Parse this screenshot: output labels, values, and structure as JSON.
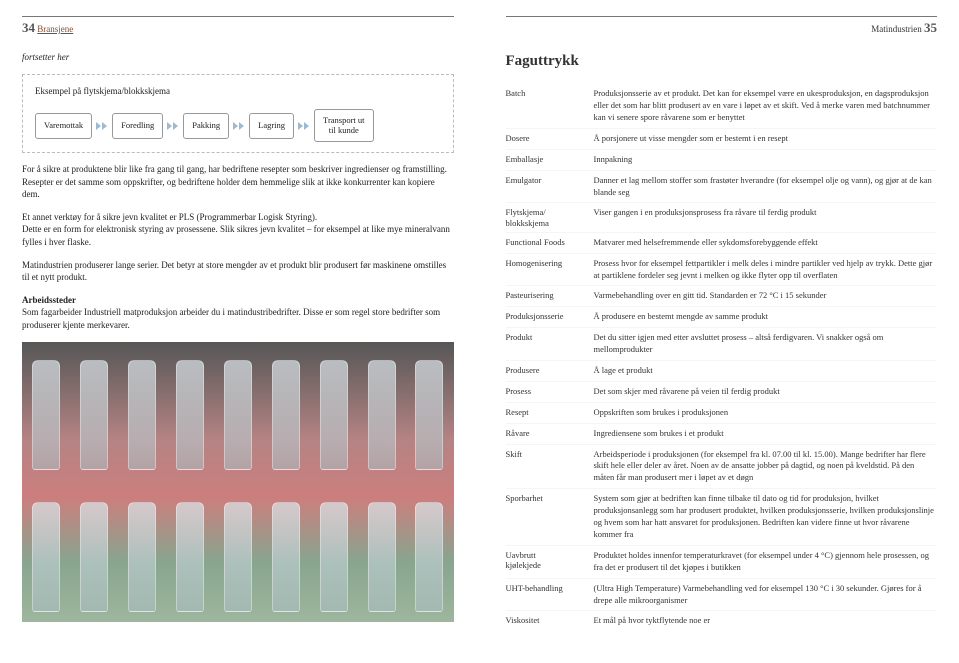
{
  "left": {
    "page_number": "34",
    "section": "Bransjene",
    "continues": "fortsetter her",
    "box_title": "Eksempel på flytskjema/blokkskjema",
    "flow": {
      "nodes": [
        "Varemottak",
        "Foredling",
        "Pakking",
        "Lagring",
        "Transport ut\ntil kunde"
      ],
      "arrow_color": "#9fbad0"
    },
    "p1": "For å sikre at produktene blir like fra gang til gang, har bedriftene resepter som beskriver ingredienser og framstilling. Resepter er det samme som oppskrifter, og bedriftene holder dem hemmelige slik at ikke konkurrenter kan kopiere dem.",
    "p2": "Et annet verktøy for å sikre jevn kvalitet er PLS (Programmerbar Logisk Styring).\nDette er en form for elektronisk styring av prosessene. Slik sikres jevn kvalitet – for eksempel at like mye mineralvann fylles i hver flaske.",
    "p3": "Matindustrien produserer lange serier. Det betyr at store mengder av et produkt blir produsert før maskinene omstilles til et nytt produkt.",
    "p4_heading": "Arbeidssteder",
    "p4": "Som fagarbeider Industriell matproduksjon arbeider du i matindustribedrifter. Disse er som regel store bedrifter som produserer kjente merkevarer."
  },
  "right": {
    "page_number": "35",
    "section_right": "Matindustrien",
    "title": "Faguttrykk",
    "terms": [
      {
        "k": "Batch",
        "v": "Produksjonsserie av et produkt. Det kan for eksempel være en ukesproduksjon, en dagsproduksjon eller det som har blitt produsert av en vare i løpet av et skift. Ved å merke varen med batchnummer kan vi senere spore råvarene som er benyttet"
      },
      {
        "k": "Dosere",
        "v": "Å porsjonere ut visse mengder som er bestemt i en resept"
      },
      {
        "k": "Emballasje",
        "v": "Innpakning"
      },
      {
        "k": "Emulgator",
        "v": "Danner et lag mellom stoffer som frastøter hverandre (for eksempel olje og vann), og gjør at de kan blande seg"
      },
      {
        "k": "Flytskjema/\nblokkskjema",
        "v": "Viser gangen i en produksjonsprosess fra råvare til ferdig produkt"
      },
      {
        "k": "Functional Foods",
        "v": "Matvarer med helsefremmende eller sykdomsforebyggende effekt"
      },
      {
        "k": "Homogenisering",
        "v": "Prosess hvor for eksempel fettpartikler i melk deles i mindre partikler ved hjelp av trykk. Dette gjør at partiklene fordeler seg jevnt i melken og ikke flyter opp til overflaten"
      },
      {
        "k": "Pasteurisering",
        "v": "Varmebehandling over en gitt tid. Standarden er 72 °C i 15 sekunder"
      },
      {
        "k": "Produksjonsserie",
        "v": "Å produsere en bestemt mengde av samme produkt"
      },
      {
        "k": "Produkt",
        "v": "Det du sitter igjen med etter avsluttet prosess – altså ferdigvaren. Vi snakker også om mellomprodukter"
      },
      {
        "k": "Produsere",
        "v": "Å lage et produkt"
      },
      {
        "k": "Prosess",
        "v": "Det som skjer med råvarene på veien til ferdig produkt"
      },
      {
        "k": "Resept",
        "v": "Oppskriften som brukes i produksjonen"
      },
      {
        "k": "Råvare",
        "v": "Ingrediensene som brukes i et produkt"
      },
      {
        "k": "Skift",
        "v": "Arbeidsperiode i produksjonen (for eksempel fra kl. 07.00 til kl. 15.00). Mange bedrifter har flere skift hele eller deler av året. Noen av de ansatte jobber på dagtid, og noen på kveldstid. På den måten får man produsert mer i løpet av et døgn"
      },
      {
        "k": "Sporbarhet",
        "v": "System som gjør at bedriften kan finne tilbake til dato og tid for produksjon, hvilket produksjonsanlegg som har produsert produktet, hvilken produksjonsserie, hvilken produksjonslinje og hvem som har hatt ansvaret for produksjonen. Bedriften kan videre finne ut hvor råvarene kommer fra"
      },
      {
        "k": "Uavbrutt\nkjølekjede",
        "v": "Produktet holdes innenfor temperaturkravet (for eksempel under 4 °C) gjennom hele prosessen, og fra det er produsert til det kjøpes i butikken"
      },
      {
        "k": "UHT-behandling",
        "v": "(Ultra High Temperature) Varmebehandling ved for eksempel 130 °C i 30 sekunder. Gjøres for å drepe alle mikroorganismer"
      },
      {
        "k": "Viskositet",
        "v": "Et mål på hvor tyktflytende noe er"
      }
    ]
  },
  "colors": {
    "accent": "#8a4a2a",
    "arrow": "#9fbad0",
    "border_dash": "#bbbbbb"
  }
}
